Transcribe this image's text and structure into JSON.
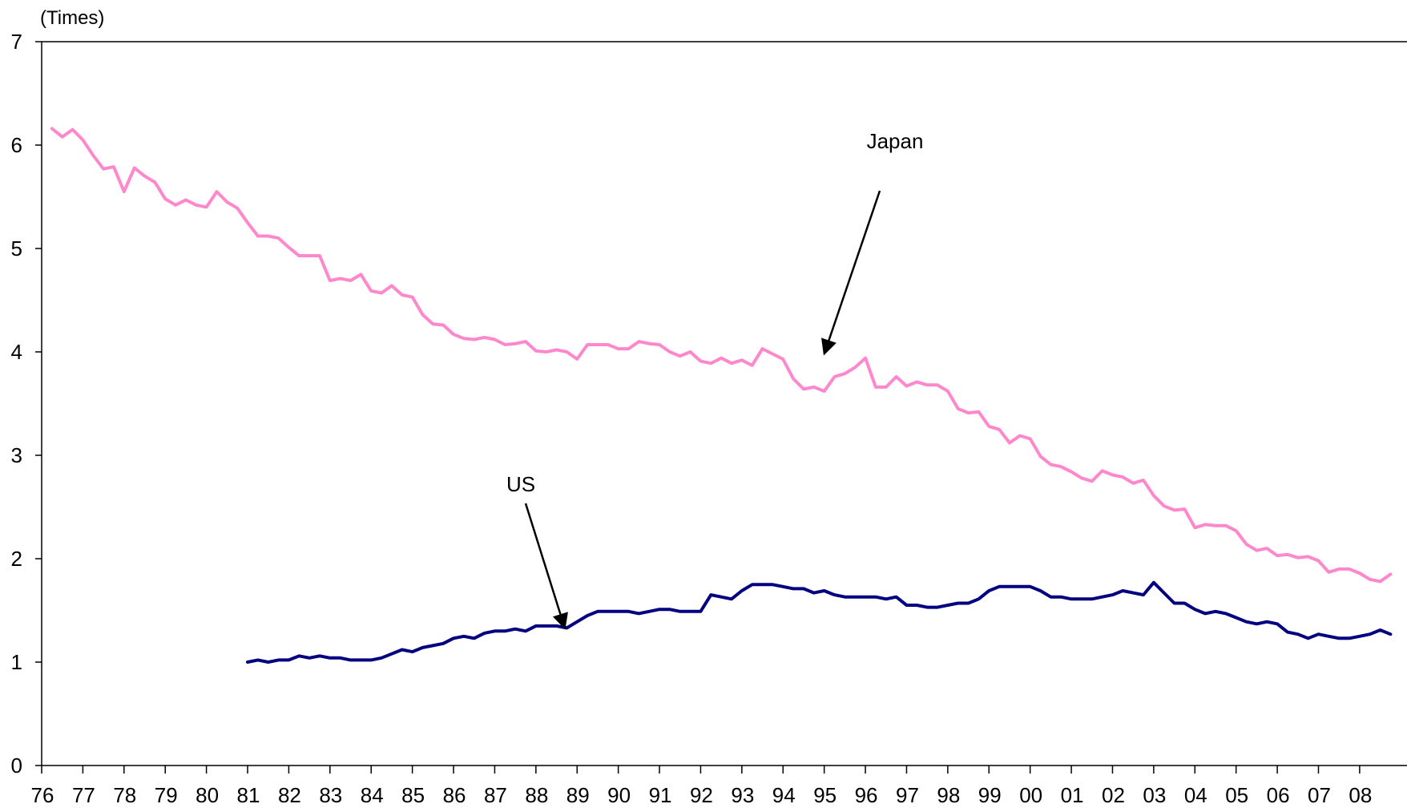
{
  "chart_data": {
    "type": "line",
    "unit_label": "(Times)",
    "title": "",
    "xlabel": "",
    "ylabel": "(Times)",
    "ylim": [
      0,
      7
    ],
    "yticks": [
      0,
      1,
      2,
      3,
      4,
      5,
      6,
      7
    ],
    "xlim": [
      1976.0,
      2009.15
    ],
    "x_tick_labels": [
      "76",
      "77",
      "78",
      "79",
      "80",
      "81",
      "82",
      "83",
      "84",
      "85",
      "86",
      "87",
      "88",
      "89",
      "90",
      "91",
      "92",
      "93",
      "94",
      "95",
      "96",
      "97",
      "98",
      "99",
      "00",
      "01",
      "02",
      "03",
      "04",
      "05",
      "06",
      "07",
      "08"
    ],
    "grid": false,
    "series": [
      {
        "name": "Japan",
        "color": "#ff88cc",
        "x_start": 1976.25,
        "x_step": 0.25,
        "values": [
          6.16,
          6.08,
          6.15,
          6.05,
          5.9,
          5.77,
          5.79,
          5.55,
          5.78,
          5.7,
          5.64,
          5.48,
          5.42,
          5.47,
          5.42,
          5.4,
          5.55,
          5.45,
          5.39,
          5.25,
          5.12,
          5.12,
          5.1,
          5.01,
          4.93,
          4.93,
          4.93,
          4.69,
          4.71,
          4.69,
          4.75,
          4.59,
          4.57,
          4.64,
          4.55,
          4.53,
          4.36,
          4.27,
          4.26,
          4.17,
          4.13,
          4.12,
          4.14,
          4.12,
          4.07,
          4.08,
          4.1,
          4.01,
          4.0,
          4.02,
          4.0,
          3.93,
          4.07,
          4.07,
          4.07,
          4.03,
          4.03,
          4.1,
          4.08,
          4.07,
          4.0,
          3.96,
          4.0,
          3.91,
          3.89,
          3.94,
          3.89,
          3.92,
          3.87,
          4.03,
          3.98,
          3.93,
          3.74,
          3.64,
          3.66,
          3.62,
          3.76,
          3.79,
          3.85,
          3.94,
          3.66,
          3.66,
          3.76,
          3.67,
          3.71,
          3.68,
          3.68,
          3.62,
          3.45,
          3.41,
          3.42,
          3.28,
          3.25,
          3.12,
          3.19,
          3.16,
          2.99,
          2.91,
          2.89,
          2.84,
          2.78,
          2.75,
          2.85,
          2.81,
          2.79,
          2.73,
          2.76,
          2.61,
          2.51,
          2.47,
          2.48,
          2.3,
          2.33,
          2.32,
          2.32,
          2.27,
          2.14,
          2.08,
          2.1,
          2.03,
          2.04,
          2.01,
          2.02,
          1.98,
          1.87,
          1.9,
          1.9,
          1.86,
          1.8,
          1.78,
          1.85
        ]
      },
      {
        "name": "US",
        "color": "#000080",
        "x_start": 1981.0,
        "x_step": 0.25,
        "values": [
          1.0,
          1.02,
          1.0,
          1.02,
          1.02,
          1.06,
          1.04,
          1.06,
          1.04,
          1.04,
          1.02,
          1.02,
          1.02,
          1.04,
          1.08,
          1.12,
          1.1,
          1.14,
          1.16,
          1.18,
          1.23,
          1.25,
          1.23,
          1.28,
          1.3,
          1.3,
          1.32,
          1.3,
          1.35,
          1.35,
          1.35,
          1.33,
          1.39,
          1.45,
          1.49,
          1.49,
          1.49,
          1.49,
          1.47,
          1.49,
          1.51,
          1.51,
          1.49,
          1.49,
          1.49,
          1.65,
          1.63,
          1.61,
          1.69,
          1.75,
          1.75,
          1.75,
          1.73,
          1.71,
          1.71,
          1.67,
          1.69,
          1.65,
          1.63,
          1.63,
          1.63,
          1.63,
          1.61,
          1.63,
          1.55,
          1.55,
          1.53,
          1.53,
          1.55,
          1.57,
          1.57,
          1.61,
          1.69,
          1.73,
          1.73,
          1.73,
          1.73,
          1.69,
          1.63,
          1.63,
          1.61,
          1.61,
          1.61,
          1.63,
          1.65,
          1.69,
          1.67,
          1.65,
          1.77,
          1.67,
          1.57,
          1.57,
          1.51,
          1.47,
          1.49,
          1.47,
          1.43,
          1.39,
          1.37,
          1.39,
          1.37,
          1.29,
          1.27,
          1.23,
          1.27,
          1.25,
          1.23,
          1.23,
          1.25,
          1.27,
          1.31,
          1.27
        ]
      }
    ],
    "annotations": [
      {
        "text": "Japan",
        "series": "Japan",
        "arrow_to": [
          1995.0,
          3.98
        ]
      },
      {
        "text": "US",
        "series": "US",
        "arrow_to": [
          1988.7,
          1.33
        ]
      }
    ]
  }
}
